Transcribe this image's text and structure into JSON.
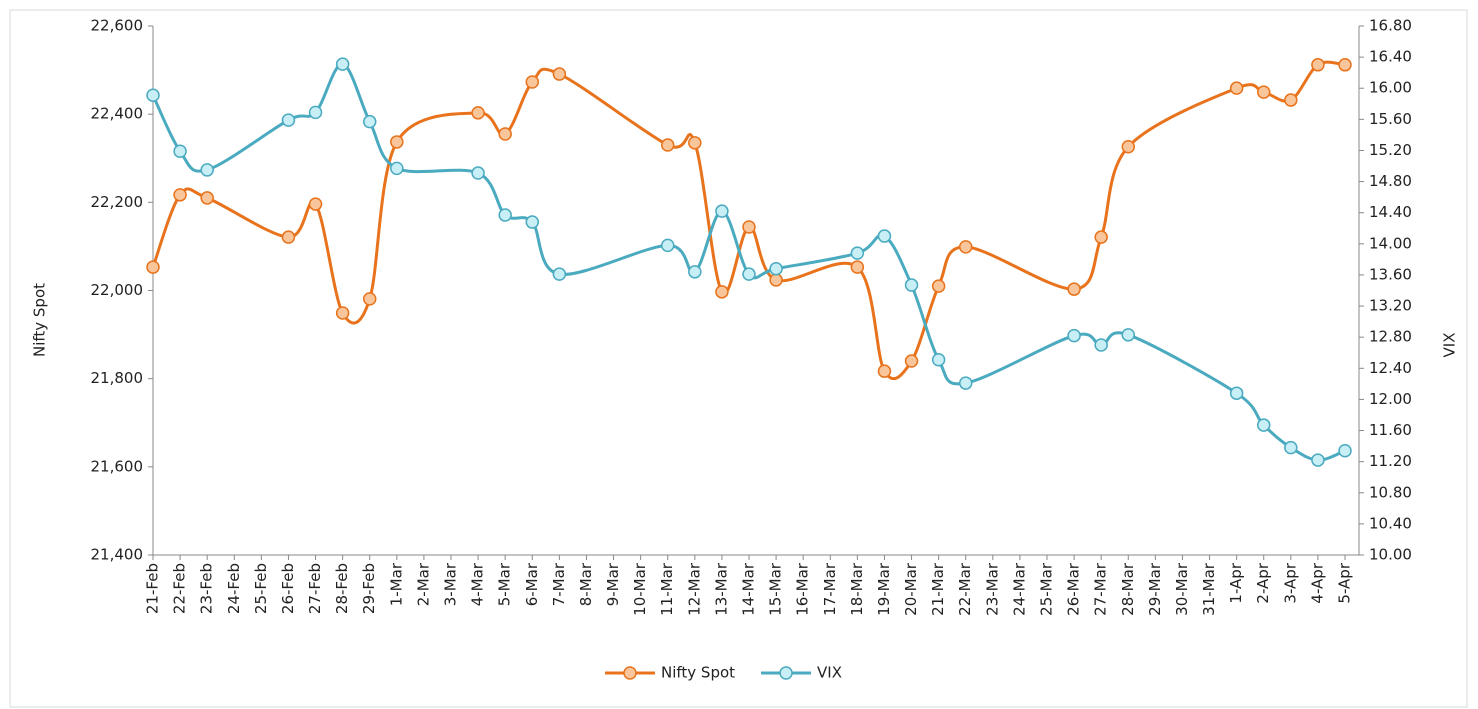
{
  "chart_data": {
    "type": "line",
    "categories": [
      "21-Feb",
      "22-Feb",
      "23-Feb",
      "24-Feb",
      "25-Feb",
      "26-Feb",
      "27-Feb",
      "28-Feb",
      "29-Feb",
      "1-Mar",
      "2-Mar",
      "3-Mar",
      "4-Mar",
      "5-Mar",
      "6-Mar",
      "7-Mar",
      "8-Mar",
      "9-Mar",
      "10-Mar",
      "11-Mar",
      "12-Mar",
      "13-Mar",
      "14-Mar",
      "15-Mar",
      "16-Mar",
      "17-Mar",
      "18-Mar",
      "19-Mar",
      "20-Mar",
      "21-Mar",
      "22-Mar",
      "23-Mar",
      "24-Mar",
      "25-Mar",
      "26-Mar",
      "27-Mar",
      "28-Mar",
      "29-Mar",
      "30-Mar",
      "31-Mar",
      "1-Apr",
      "2-Apr",
      "3-Apr",
      "4-Apr",
      "5-Apr"
    ],
    "series": [
      {
        "name": "Nifty Spot",
        "color": "#e8731c",
        "marker_color": "#f9c59a",
        "values": [
          22053,
          22217,
          22210,
          null,
          null,
          22121,
          22196,
          21949,
          21981,
          22337,
          null,
          null,
          22403,
          22355,
          22473,
          22491,
          null,
          null,
          null,
          22330,
          22335,
          21997,
          22144,
          22024,
          null,
          null,
          22053,
          21817,
          21840,
          22010,
          22099,
          null,
          null,
          null,
          22003,
          22121,
          22326,
          null,
          null,
          null,
          22459,
          22450,
          22432,
          22512,
          22512
        ]
      },
      {
        "name": "VIX",
        "color": "#4aaabf",
        "marker_color": "#c8eef6",
        "axis": "y2",
        "values": [
          15.91,
          15.19,
          14.95,
          null,
          null,
          15.59,
          15.69,
          16.31,
          15.57,
          14.97,
          null,
          null,
          14.91,
          14.37,
          14.28,
          13.61,
          null,
          null,
          null,
          13.98,
          13.64,
          14.42,
          13.61,
          13.68,
          null,
          null,
          13.88,
          14.1,
          13.47,
          12.51,
          12.21,
          null,
          null,
          null,
          12.82,
          12.7,
          12.83,
          null,
          null,
          null,
          12.08,
          11.67,
          11.38,
          11.22,
          11.34
        ]
      }
    ],
    "y_label": "Nifty Spot",
    "y2_label": "VIX",
    "ylim": [
      21400,
      22600
    ],
    "yticks": [
      {
        "value": 21400,
        "label": "21,400"
      },
      {
        "value": 21600,
        "label": "21,600"
      },
      {
        "value": 21800,
        "label": "21,800"
      },
      {
        "value": 22000,
        "label": "22,000"
      },
      {
        "value": 22200,
        "label": "22,200"
      },
      {
        "value": 22400,
        "label": "22,400"
      },
      {
        "value": 22600,
        "label": "22,600"
      }
    ],
    "y2lim": [
      10,
      16.8
    ],
    "y2ticks": [
      {
        "value": 10,
        "label": "10.00"
      },
      {
        "value": 10.4,
        "label": "10.40"
      },
      {
        "value": 10.8,
        "label": "10.80"
      },
      {
        "value": 11.2,
        "label": "11.20"
      },
      {
        "value": 11.6,
        "label": "11.60"
      },
      {
        "value": 12,
        "label": "12.00"
      },
      {
        "value": 12.4,
        "label": "12.40"
      },
      {
        "value": 12.8,
        "label": "12.80"
      },
      {
        "value": 13.2,
        "label": "13.20"
      },
      {
        "value": 13.6,
        "label": "13.60"
      },
      {
        "value": 14,
        "label": "14.00"
      },
      {
        "value": 14.4,
        "label": "14.40"
      },
      {
        "value": 14.8,
        "label": "14.80"
      },
      {
        "value": 15.2,
        "label": "15.20"
      },
      {
        "value": 15.6,
        "label": "15.60"
      },
      {
        "value": 16,
        "label": "16.00"
      },
      {
        "value": 16.4,
        "label": "16.40"
      },
      {
        "value": 16.8,
        "label": "16.80"
      }
    ],
    "smooth": true,
    "connect_gaps": true,
    "legend": "bottom"
  }
}
